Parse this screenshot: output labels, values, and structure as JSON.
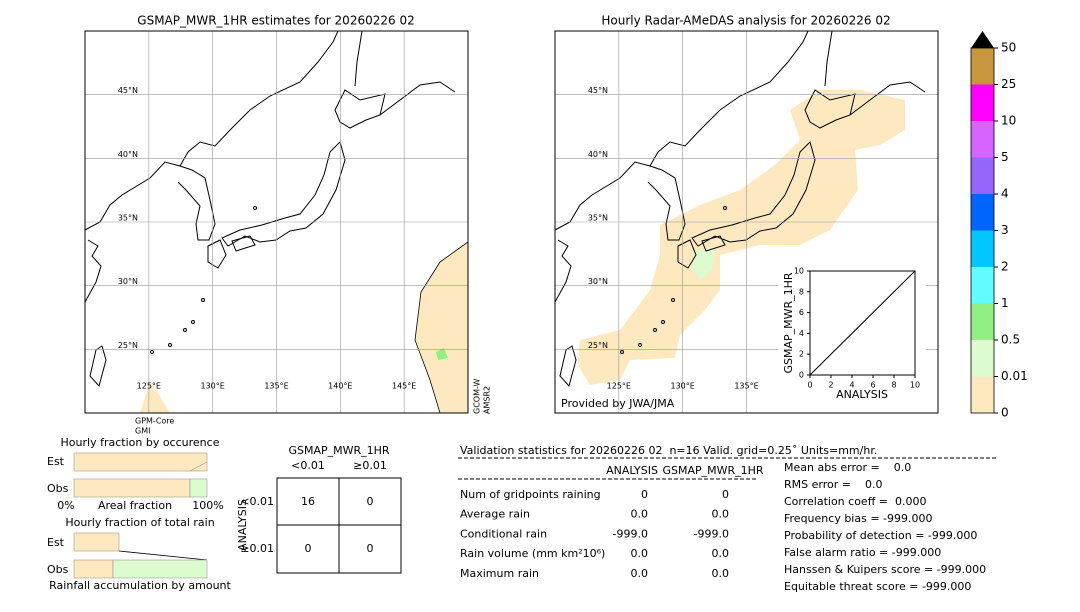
{
  "maps": [
    {
      "title": "GSMAP_MWR_1HR estimates for 20260226 02",
      "lat_ticks": [
        {
          "value": 45,
          "label": "45°N"
        },
        {
          "value": 40,
          "label": "40°N"
        },
        {
          "value": 35,
          "label": "35°N"
        },
        {
          "value": 30,
          "label": "30°N"
        },
        {
          "value": 25,
          "label": "25°N"
        }
      ],
      "lon_ticks": [
        {
          "value": 125,
          "label": "125°E"
        },
        {
          "value": 130,
          "label": "130°E"
        },
        {
          "value": 135,
          "label": "135°E"
        },
        {
          "value": 140,
          "label": "140°E"
        },
        {
          "value": 145,
          "label": "145°E"
        }
      ],
      "sensor_labels": [
        [
          "GPM-Core",
          "GMI"
        ],
        [
          "GCOM-W",
          "AMSR2"
        ]
      ]
    },
    {
      "title": "Hourly Radar-AMeDAS analysis for 20260226 02",
      "lat_ticks": [
        {
          "value": 45,
          "label": "45°N"
        },
        {
          "value": 40,
          "label": "40°N"
        },
        {
          "value": 35,
          "label": "35°N"
        },
        {
          "value": 30,
          "label": "30°N"
        },
        {
          "value": 25,
          "label": "25°N"
        }
      ],
      "lon_ticks": [
        {
          "value": 125,
          "label": "125°E"
        },
        {
          "value": 130,
          "label": "130°E"
        },
        {
          "value": 135,
          "label": "135°E"
        }
      ],
      "credit": "Provided by JWA/JMA"
    }
  ],
  "scatter": {
    "xlabel": "ANALYSIS",
    "ylabel": "GSMAP_MWR_1HR",
    "xlim": [
      0,
      10
    ],
    "ylim": [
      0,
      10
    ],
    "xticks": [
      0,
      2,
      4,
      6,
      8,
      10
    ],
    "yticks": [
      0,
      2,
      4,
      6,
      8,
      10
    ]
  },
  "colorbar": {
    "levels": [
      0,
      0.01,
      0.5,
      1,
      2,
      3,
      4,
      5,
      10,
      25,
      50
    ],
    "colors": [
      "#fde8c0",
      "#dcfcd0",
      "#90f080",
      "#60fcff",
      "#00c8ff",
      "#0064ff",
      "#9664ff",
      "#d864ff",
      "#ff00ff",
      "#c8963c"
    ]
  },
  "occurrence": {
    "title": "Hourly fraction by occurence",
    "rows": [
      "Est",
      "Obs"
    ],
    "axis_labels": [
      "0%",
      "Areal fraction",
      "100%"
    ]
  },
  "accumulation": {
    "title": "Hourly fraction of total rain",
    "rows": [
      "Est",
      "Obs"
    ],
    "footer": "Rainfall accumulation by amount"
  },
  "contingency": {
    "title": "GSMAP_MWR_1HR",
    "columns": [
      "<0.01",
      "≥0.01"
    ],
    "row_title": "ANALYSIS",
    "rows": [
      "<0.01",
      "≥0.01"
    ],
    "cells": [
      [
        "16",
        "0"
      ],
      [
        "0",
        "0"
      ]
    ]
  },
  "stats": {
    "header": "Validation statistics for 20260226 02  n=16 Valid. grid=0.25˚ Units=mm/hr.",
    "columns": [
      "ANALYSIS",
      "GSMAP_MWR_1HR"
    ],
    "rows": [
      [
        "Num of gridpoints raining",
        "0",
        "0"
      ],
      [
        "Average rain",
        "0.0",
        "0.0"
      ],
      [
        "Conditional rain",
        "-999.0",
        "-999.0"
      ],
      [
        "Rain volume (mm km²10⁶)",
        "0.0",
        "0.0"
      ],
      [
        "Maximum rain",
        "0.0",
        "0.0"
      ]
    ],
    "scores": [
      "Mean abs error =    0.0",
      "RMS error =    0.0",
      "Correlation coeff =  0.000",
      "Frequency bias = -999.000",
      "Probability of detection = -999.000",
      "False alarm ratio = -999.000",
      "Hanssen & Kuipers score = -999.000",
      "Equitable threat score = -999.000"
    ]
  }
}
